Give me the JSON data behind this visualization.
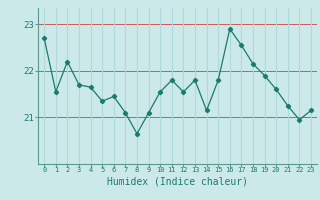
{
  "x": [
    0,
    1,
    2,
    3,
    4,
    5,
    6,
    7,
    8,
    9,
    10,
    11,
    12,
    13,
    14,
    15,
    16,
    17,
    18,
    19,
    20,
    21,
    22,
    23
  ],
  "y": [
    22.7,
    21.55,
    22.2,
    21.7,
    21.65,
    21.35,
    21.45,
    21.1,
    20.65,
    21.1,
    21.55,
    21.8,
    21.55,
    21.8,
    21.15,
    21.8,
    22.9,
    22.55,
    22.15,
    21.9,
    21.6,
    21.25,
    20.95,
    21.15
  ],
  "line_color": "#1a7a6e",
  "marker": "D",
  "marker_size": 2.2,
  "background_color": "#cce9e9",
  "grid_color": "#b0d8d8",
  "xlabel": "Humidex (Indice chaleur)",
  "ylim": [
    20.0,
    23.35
  ],
  "yticks": [
    21,
    22,
    23
  ],
  "xticks": [
    0,
    1,
    2,
    3,
    4,
    5,
    6,
    7,
    8,
    9,
    10,
    11,
    12,
    13,
    14,
    15,
    16,
    17,
    18,
    19,
    20,
    21,
    22,
    23
  ],
  "tick_color": "#1a7a6e",
  "label_color": "#1a7a6e",
  "spine_color": "#5a9a8a",
  "red_hline_color": "#cc4444",
  "red_hlines": [
    21,
    22,
    23
  ]
}
